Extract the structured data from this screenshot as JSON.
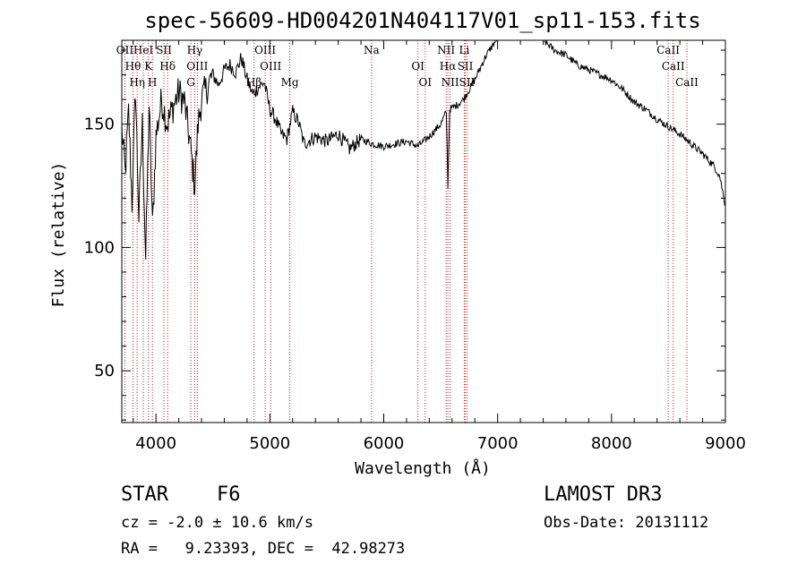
{
  "chart_data": {
    "type": "line",
    "title": "spec-56609-HD004201N404117V01_sp11-153.fits",
    "xlabel": "Wavelength (Å)",
    "ylabel": "Flux (relative)",
    "xlim": [
      3700,
      9000
    ],
    "ylim": [
      29,
      184
    ],
    "xticks": [
      4000,
      5000,
      6000,
      7000,
      8000,
      9000
    ],
    "xtick_labels": [
      "4000",
      "5000",
      "6000",
      "7000",
      "8000",
      "9000"
    ],
    "yticks": [
      50,
      100,
      150
    ],
    "ytick_labels": [
      "50",
      "100",
      "150"
    ],
    "series": [
      {
        "name": "spectrum",
        "x": [
          3700,
          3730,
          3760,
          3790,
          3820,
          3850,
          3880,
          3910,
          3940,
          3970,
          4000,
          4050,
          4100,
          4150,
          4200,
          4250,
          4300,
          4340,
          4370,
          4400,
          4450,
          4500,
          4550,
          4600,
          4650,
          4700,
          4750,
          4800,
          4850,
          4900,
          4950,
          5000,
          5050,
          5100,
          5150,
          5200,
          5250,
          5300,
          5400,
          5500,
          5600,
          5700,
          5800,
          5900,
          6000,
          6100,
          6200,
          6300,
          6400,
          6500,
          6550,
          6563,
          6580,
          6650,
          6700,
          6800,
          6900,
          7000,
          7100,
          7200,
          7300,
          7400,
          7500,
          7600,
          7700,
          7800,
          7900,
          8000,
          8100,
          8200,
          8300,
          8400,
          8500,
          8600,
          8700,
          8800,
          8900,
          8950,
          9000
        ],
        "y": [
          148,
          130,
          155,
          118,
          165,
          112,
          150,
          95,
          158,
          108,
          145,
          160,
          150,
          157,
          163,
          159,
          142,
          125,
          150,
          160,
          165,
          170,
          166,
          172,
          174,
          171,
          177,
          168,
          162,
          165,
          167,
          156,
          152,
          146,
          144,
          155,
          151,
          142,
          145,
          143,
          146,
          140,
          144,
          142,
          141,
          142,
          143,
          141,
          145,
          150,
          155,
          125,
          156,
          158,
          160,
          168,
          178,
          185,
          187,
          186,
          188,
          184,
          180,
          178,
          174,
          172,
          170,
          168,
          164,
          159,
          156,
          152,
          149,
          146,
          142,
          138,
          133,
          129,
          117
        ]
      }
    ],
    "emission_lines": [
      {
        "label": "OII",
        "wavelength": 3727
      },
      {
        "label": "Hθ",
        "wavelength": 3798
      },
      {
        "label": "Hη",
        "wavelength": 3835
      },
      {
        "label": "HeI",
        "wavelength": 3889
      },
      {
        "label": "K",
        "wavelength": 3934
      },
      {
        "label": "H",
        "wavelength": 3969
      },
      {
        "label": "SII",
        "wavelength": 4070
      },
      {
        "label": "Hδ",
        "wavelength": 4102
      },
      {
        "label": "G",
        "wavelength": 4306
      },
      {
        "label": "Hγ",
        "wavelength": 4340
      },
      {
        "label": "OIII",
        "wavelength": 4363
      },
      {
        "label": "Hβ",
        "wavelength": 4861
      },
      {
        "label": "OIII",
        "wavelength": 4959
      },
      {
        "label": "OIII",
        "wavelength": 5007
      },
      {
        "label": "Mg",
        "wavelength": 5175
      },
      {
        "label": "Na",
        "wavelength": 5893
      },
      {
        "label": "OI",
        "wavelength": 6300
      },
      {
        "label": "OI",
        "wavelength": 6364
      },
      {
        "label": "NII",
        "wavelength": 6548
      },
      {
        "label": "Hα",
        "wavelength": 6563
      },
      {
        "label": "NII",
        "wavelength": 6583
      },
      {
        "label": "Li",
        "wavelength": 6707
      },
      {
        "label": "SII",
        "wavelength": 6716
      },
      {
        "label": "SII",
        "wavelength": 6731
      },
      {
        "label": "CaII",
        "wavelength": 8498
      },
      {
        "label": "CaII",
        "wavelength": 8542
      },
      {
        "label": "CaII",
        "wavelength": 8662
      }
    ]
  },
  "info": {
    "object_class": "STAR",
    "subclass": "F6",
    "redshift": "cz = -2.0 ± 10.6 km/s",
    "coords": "RA =   9.23393, DEC =  42.98273",
    "survey": "LAMOST DR3",
    "obs_date": "Obs-Date: 20131112"
  },
  "colors": {
    "line": "#000000",
    "marker": "#cc2222",
    "background": "#ffffff"
  }
}
